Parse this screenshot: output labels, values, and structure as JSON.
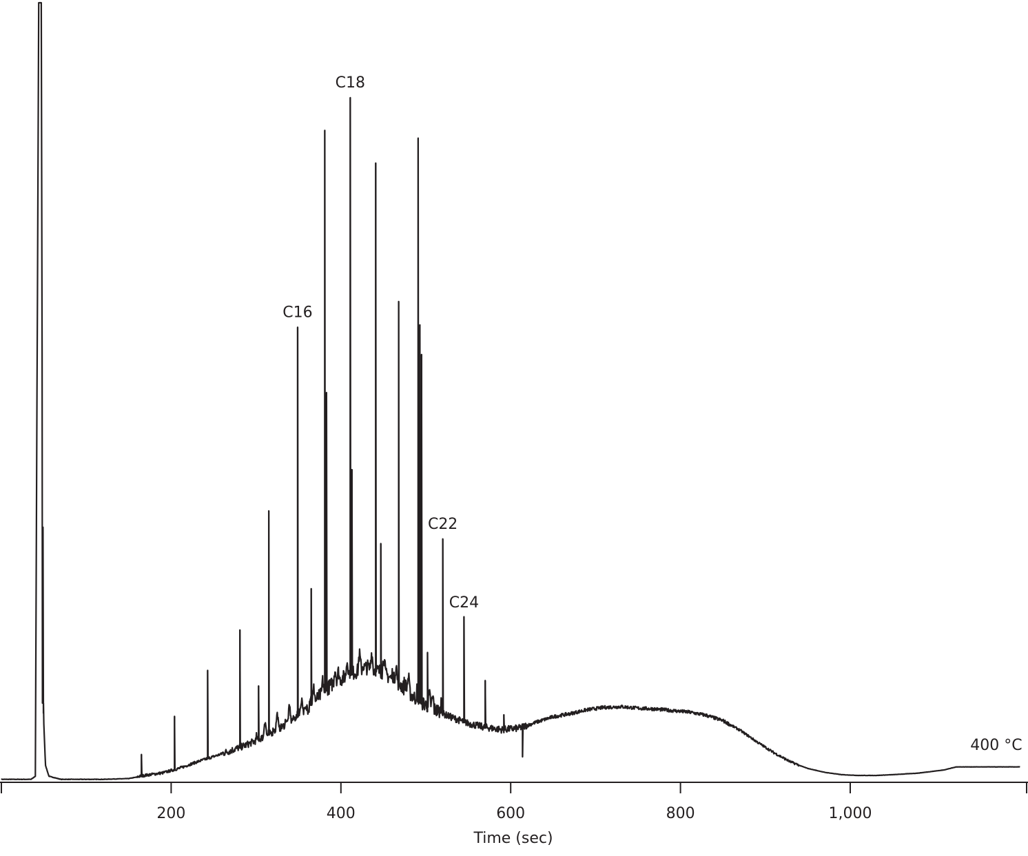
{
  "chart_data": {
    "type": "line",
    "title": "",
    "xlabel": "Time (sec)",
    "ylabel": "",
    "xlim": [
      0,
      1200
    ],
    "ylim": [
      0,
      100
    ],
    "xticks": [
      {
        "value": 200,
        "label": "200"
      },
      {
        "value": 400,
        "label": "400"
      },
      {
        "value": 600,
        "label": "600"
      },
      {
        "value": 800,
        "label": "800"
      },
      {
        "value": 1000,
        "label": "1,000"
      }
    ],
    "grid": false,
    "legend": "none",
    "line_color": "#231f20",
    "baseline": [
      [
        0,
        0.2
      ],
      [
        35,
        0.2
      ],
      [
        40,
        0.6
      ],
      [
        44,
        100
      ],
      [
        47,
        100
      ],
      [
        49,
        10
      ],
      [
        52,
        2
      ],
      [
        56,
        0.6
      ],
      [
        70,
        0.2
      ],
      [
        120,
        0.2
      ],
      [
        150,
        0.3
      ],
      [
        170,
        0.7
      ],
      [
        190,
        1.0
      ],
      [
        210,
        1.6
      ],
      [
        230,
        2.4
      ],
      [
        250,
        3.1
      ],
      [
        270,
        3.8
      ],
      [
        290,
        4.6
      ],
      [
        310,
        5.6
      ],
      [
        330,
        6.8
      ],
      [
        350,
        8.3
      ],
      [
        370,
        10.2
      ],
      [
        390,
        12.3
      ],
      [
        410,
        13.5
      ],
      [
        430,
        14.4
      ],
      [
        450,
        13.7
      ],
      [
        470,
        12.2
      ],
      [
        490,
        10.2
      ],
      [
        510,
        9.0
      ],
      [
        530,
        8.1
      ],
      [
        550,
        7.3
      ],
      [
        570,
        6.8
      ],
      [
        590,
        6.5
      ],
      [
        610,
        6.7
      ],
      [
        630,
        7.5
      ],
      [
        650,
        8.2
      ],
      [
        670,
        8.6
      ],
      [
        690,
        9.1
      ],
      [
        710,
        9.4
      ],
      [
        730,
        9.5
      ],
      [
        750,
        9.3
      ],
      [
        770,
        9.2
      ],
      [
        790,
        9.0
      ],
      [
        810,
        8.8
      ],
      [
        830,
        8.4
      ],
      [
        850,
        7.7
      ],
      [
        870,
        6.5
      ],
      [
        890,
        5.0
      ],
      [
        910,
        3.6
      ],
      [
        930,
        2.4
      ],
      [
        950,
        1.6
      ],
      [
        970,
        1.1
      ],
      [
        990,
        0.8
      ],
      [
        1010,
        0.7
      ],
      [
        1030,
        0.7
      ],
      [
        1050,
        0.8
      ],
      [
        1080,
        1.0
      ],
      [
        1110,
        1.4
      ],
      [
        1125,
        1.8
      ],
      [
        1140,
        1.8
      ],
      [
        1200,
        1.8
      ]
    ],
    "peaks": [
      {
        "x": 49,
        "height": 32.6
      },
      {
        "x": 165,
        "height": 3.4
      },
      {
        "x": 204,
        "height": 8.3
      },
      {
        "x": 243,
        "height": 14.2
      },
      {
        "x": 281,
        "height": 19.4
      },
      {
        "x": 303,
        "height": 12.2
      },
      {
        "x": 315,
        "height": 34.7
      },
      {
        "x": 349,
        "height": 58.3
      },
      {
        "x": 365,
        "height": 24.7
      },
      {
        "x": 381,
        "height": 83.6
      },
      {
        "x": 383,
        "height": 49.9
      },
      {
        "x": 411,
        "height": 87.8
      },
      {
        "x": 413,
        "height": 40.0
      },
      {
        "x": 441,
        "height": 79.4
      },
      {
        "x": 447,
        "height": 30.5
      },
      {
        "x": 468,
        "height": 61.6
      },
      {
        "x": 491,
        "height": 82.6
      },
      {
        "x": 493,
        "height": 58.6
      },
      {
        "x": 495,
        "height": 54.8
      },
      {
        "x": 502,
        "height": 16.5
      },
      {
        "x": 520,
        "height": 31.1
      },
      {
        "x": 545,
        "height": 21.1
      },
      {
        "x": 570,
        "height": 12.9
      },
      {
        "x": 592,
        "height": 8.5
      },
      {
        "x": 614,
        "height": 3.1
      }
    ],
    "annotations": [
      {
        "text": "C16",
        "x": 349,
        "y": 59.6
      },
      {
        "text": "C18",
        "x": 411,
        "y": 89.1
      },
      {
        "text": "C22",
        "x": 520,
        "y": 32.4
      },
      {
        "text": "C24",
        "x": 545,
        "y": 22.3
      }
    ],
    "end_label": {
      "text": "400 °C",
      "x": 1172,
      "y": 4.0
    }
  }
}
